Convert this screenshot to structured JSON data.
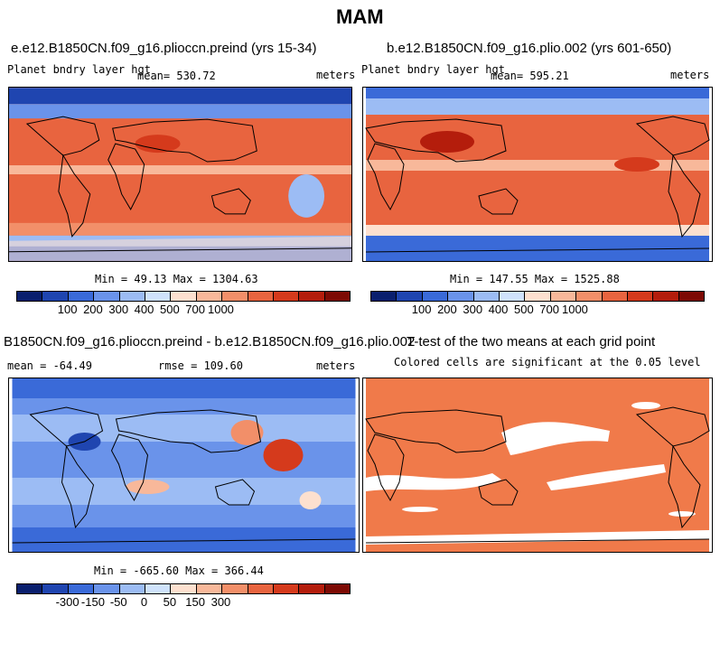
{
  "figure": {
    "title": "MAM"
  },
  "panels": [
    {
      "id": "preind",
      "title": "e.e12.B1850CN.f09_g16.plioccn.preind (yrs 15-34)",
      "variable": "Planet bndry layer hgt",
      "stat": "mean= 530.72",
      "units": "meters",
      "minmax": "Min =  49.13 Max = 1304.63",
      "colorbar": {
        "colors": [
          "#0a1f6e",
          "#1f45b0",
          "#3a6ad8",
          "#6a93ea",
          "#9cbcf4",
          "#cfe2fb",
          "#fde0cf",
          "#f8b89a",
          "#f28f69",
          "#e8643f",
          "#d53a1c",
          "#b41d0c",
          "#7d0a04"
        ],
        "ticks": [
          "100",
          "200",
          "300",
          "400",
          "500",
          "700",
          "1000"
        ]
      }
    },
    {
      "id": "plio",
      "title": "b.e12.B1850CN.f09_g16.plio.002 (yrs 601-650)",
      "variable": "Planet bndry layer hgt",
      "stat": "mean= 595.21",
      "units": "meters",
      "minmax": "Min = 147.55 Max = 1525.88",
      "colorbar": {
        "colors": [
          "#0a1f6e",
          "#1f45b0",
          "#3a6ad8",
          "#6a93ea",
          "#9cbcf4",
          "#cfe2fb",
          "#fde0cf",
          "#f8b89a",
          "#f28f69",
          "#e8643f",
          "#d53a1c",
          "#b41d0c",
          "#7d0a04"
        ],
        "ticks": [
          "100",
          "200",
          "300",
          "400",
          "500",
          "700",
          "1000"
        ]
      }
    },
    {
      "id": "diff",
      "title": "B1850CN.f09_g16.plioccn.preind - b.e12.B1850CN.f09_g16.plio.002",
      "stat": "mean = -64.49",
      "rmse": "rmse = 109.60",
      "units": "meters",
      "minmax": "Min = -665.60 Max = 366.44",
      "colorbar": {
        "colors": [
          "#0a1f6e",
          "#1f45b0",
          "#3a6ad8",
          "#6a93ea",
          "#9cbcf4",
          "#cfe2fb",
          "#fde0cf",
          "#f8b89a",
          "#f28f69",
          "#e8643f",
          "#d53a1c",
          "#b41d0c",
          "#7d0a04"
        ],
        "ticks": [
          "-300",
          "-150",
          "-50",
          "0",
          "50",
          "150",
          "300"
        ]
      }
    },
    {
      "id": "ttest",
      "title": "T-test of the two means at each grid point",
      "subtitle": "Colored cells are significant at the 0.05 level",
      "fill_color": "#f07a4a"
    }
  ]
}
